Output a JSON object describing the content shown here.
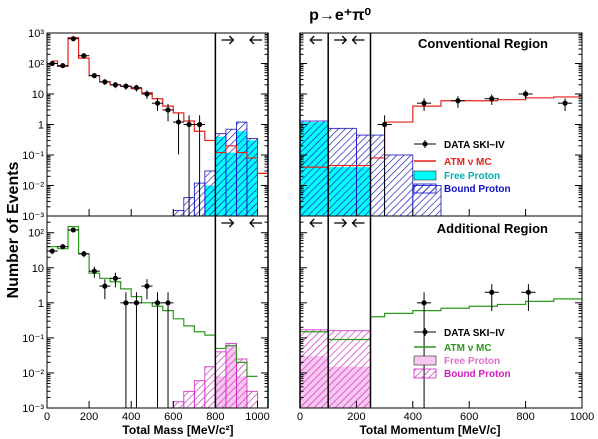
{
  "figure": {
    "title": "p→e⁺π⁰",
    "ylabel": "Number of Events",
    "colors": {
      "mc": "#e8201a",
      "mc_additional": "#2a9a1a",
      "free": "#00ffff",
      "bound": "#1010c0",
      "free_additional": "#f8c8f0",
      "bound_additional": "#d020c0",
      "cut": "#000000"
    }
  },
  "chart_data": [
    {
      "type": "histogram",
      "panel": "conventional-mass",
      "title": "Conventional Region",
      "xlabel": "Total Mass [MeV/c²]",
      "ylabel": "Number of Events",
      "xlim": [
        0,
        1050
      ],
      "ylim": [
        0.001,
        1000
      ],
      "yscale": "log",
      "xticks": [
        0,
        200,
        400,
        600,
        800,
        1000
      ],
      "yticks": [
        "10⁻³",
        "10⁻²",
        "10⁻¹",
        "1",
        "10",
        "10²",
        "10³"
      ],
      "cuts": [
        800,
        1050
      ],
      "data": {
        "name": "DATA SKI~IV",
        "x": [
          25,
          75,
          125,
          175,
          225,
          275,
          325,
          375,
          425,
          475,
          525,
          575,
          625,
          675,
          725
        ],
        "y": [
          100,
          85,
          650,
          180,
          40,
          25,
          20,
          18,
          16,
          10,
          5,
          3,
          1.2,
          1,
          1
        ]
      },
      "mc": {
        "name": "ATM ν MC",
        "edges": [
          0,
          25,
          50,
          100,
          150,
          200,
          250,
          300,
          350,
          400,
          450,
          500,
          550,
          600,
          650,
          700,
          750,
          800,
          850,
          900,
          950,
          1000,
          1050
        ],
        "values": [
          100,
          120,
          80,
          700,
          150,
          40,
          25,
          20,
          18,
          15,
          11,
          7,
          4,
          2.4,
          1.3,
          0.6,
          0.3,
          0.12,
          0.2,
          0.12,
          0.08,
          0.025
        ]
      },
      "free": {
        "name": "Free Proton",
        "edges": [
          750,
          800,
          850,
          900,
          950,
          1000
        ],
        "values": [
          0.01,
          0.4,
          0.12,
          0.6,
          0.3
        ]
      },
      "bound": {
        "name": "Bound Proton",
        "edges": [
          600,
          650,
          700,
          750,
          800,
          850,
          900,
          950,
          1000
        ],
        "values": [
          0.0015,
          0.004,
          0.012,
          0.03,
          0.5,
          0.7,
          1.2,
          0.35
        ]
      }
    },
    {
      "type": "histogram",
      "panel": "conventional-momentum",
      "xlabel": "Total Momentum [MeV/c]",
      "xlim": [
        0,
        1000
      ],
      "ylim": [
        0.001,
        1000
      ],
      "yscale": "log",
      "xticks": [
        0,
        200,
        400,
        600,
        800,
        1000
      ],
      "cuts": [
        0,
        100,
        250
      ],
      "data": {
        "name": "DATA SKI~IV",
        "x": [
          300,
          440,
          560,
          680,
          800,
          940
        ],
        "y": [
          1,
          5,
          6,
          7,
          10,
          5
        ]
      },
      "mc": {
        "name": "ATM ν MC",
        "edges": [
          0,
          100,
          250,
          300,
          400,
          500,
          600,
          700,
          800,
          900,
          1000
        ],
        "values": [
          0.04,
          0.045,
          0.08,
          1.2,
          4,
          6,
          6,
          6.5,
          7.5,
          8
        ]
      },
      "free": {
        "name": "Free Proton",
        "edges": [
          0,
          100,
          250
        ],
        "values": [
          1.2,
          0.04
        ]
      },
      "bound": {
        "name": "Bound Proton",
        "edges": [
          0,
          100,
          200,
          300,
          400,
          500
        ],
        "values": [
          1.3,
          0.75,
          0.45,
          0.1,
          0.01
        ]
      }
    },
    {
      "type": "histogram",
      "panel": "additional-mass",
      "title": "Additional Region",
      "xlabel": "Total Mass [MeV/c²]",
      "ylabel": "Number of Events",
      "xlim": [
        0,
        1050
      ],
      "ylim": [
        0.001,
        300
      ],
      "yscale": "log",
      "xticks": [
        0,
        200,
        400,
        600,
        800,
        1000
      ],
      "yticks": [
        "10⁻³",
        "10⁻²",
        "10⁻¹",
        "1",
        "10",
        "10²"
      ],
      "cuts": [
        800,
        1050
      ],
      "data": {
        "name": "DATA SKI~IV",
        "x": [
          25,
          75,
          125,
          175,
          225,
          275,
          325,
          375,
          425,
          475,
          525,
          575
        ],
        "y": [
          30,
          40,
          120,
          25,
          8,
          3,
          5,
          1,
          1,
          3,
          1,
          1
        ]
      },
      "mc": {
        "name": "ATM ν MC",
        "edges": [
          0,
          50,
          100,
          150,
          200,
          250,
          300,
          350,
          400,
          450,
          500,
          550,
          600,
          650,
          700,
          750,
          800,
          850,
          900,
          950,
          1000
        ],
        "values": [
          40,
          35,
          150,
          25,
          7,
          5,
          4,
          2.5,
          1.5,
          1,
          0.8,
          0.6,
          0.35,
          0.22,
          0.15,
          0.12,
          0.05,
          0.06,
          0.02,
          0.008
        ]
      },
      "free": {
        "name": "Free Proton",
        "edges": [
          800,
          850,
          900,
          950
        ],
        "values": [
          0.008,
          0.06,
          0.008
        ]
      },
      "bound": {
        "name": "Bound Proton",
        "edges": [
          600,
          650,
          700,
          750,
          800,
          850,
          900,
          950,
          1000
        ],
        "values": [
          0.0015,
          0.003,
          0.006,
          0.015,
          0.04,
          0.07,
          0.025,
          0.003
        ]
      }
    },
    {
      "type": "histogram",
      "panel": "additional-momentum",
      "xlabel": "Total Momentum [MeV/c]",
      "xlim": [
        0,
        1000
      ],
      "ylim": [
        0.001,
        300
      ],
      "yscale": "log",
      "xticks": [
        0,
        200,
        400,
        600,
        800,
        1000
      ],
      "cuts": [
        0,
        100,
        250
      ],
      "data": {
        "name": "DATA SKI~IV",
        "x": [
          440,
          680,
          810
        ],
        "y": [
          1,
          2,
          2
        ]
      },
      "mc": {
        "name": "ATM ν MC",
        "edges": [
          0,
          100,
          250,
          300,
          400,
          500,
          600,
          700,
          800,
          900,
          1000
        ],
        "values": [
          0.15,
          0.09,
          0.4,
          0.5,
          0.6,
          0.7,
          0.8,
          0.9,
          1.1,
          1.3
        ]
      },
      "free": {
        "name": "Free Proton",
        "edges": [
          0,
          100,
          250
        ],
        "values": [
          0.03,
          0.015
        ]
      },
      "bound": {
        "name": "Bound Proton",
        "edges": [
          0,
          100,
          250
        ],
        "values": [
          0.17,
          0.16
        ]
      }
    }
  ],
  "legend_top": {
    "data": "DATA SKI~IV",
    "mc": "ATM ν MC",
    "free": "Free Proton",
    "bound": "Bound Proton"
  },
  "legend_bottom": {
    "data": "DATA SKI~IV",
    "mc": "ATM ν MC",
    "free": "Free Proton",
    "bound": "Bound Proton"
  }
}
